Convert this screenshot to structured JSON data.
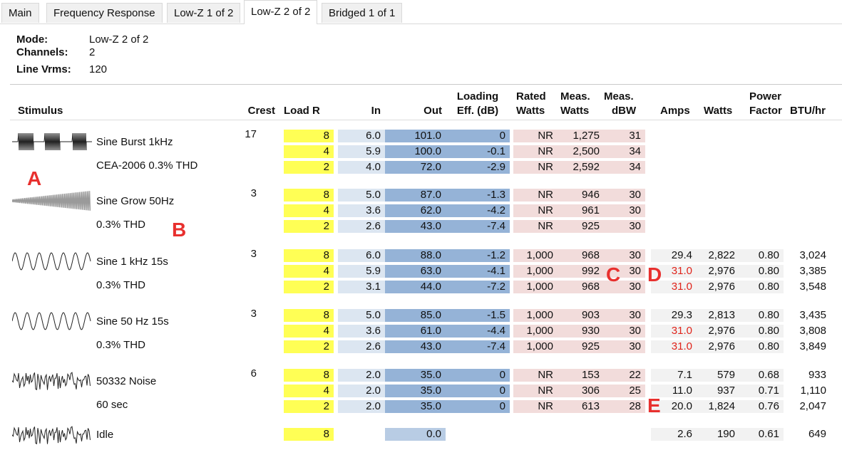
{
  "tabs": [
    {
      "label": "Main",
      "active": false
    },
    {
      "label": "Frequency Response",
      "active": false
    },
    {
      "label": "Low-Z 1 of 2",
      "active": false
    },
    {
      "label": "Low-Z 2 of 2",
      "active": true
    },
    {
      "label": "Bridged 1 of 1",
      "active": false
    }
  ],
  "info": {
    "mode_label": "Mode:",
    "mode_value": "Low-Z 2 of 2",
    "channels_label": "Channels:",
    "channels_value": "2",
    "line_label": "Line Vrms:",
    "line_value": "120"
  },
  "headers": {
    "stimulus": "Stimulus",
    "crest": "Crest",
    "load": "Load R",
    "in": "In",
    "out": "Out",
    "loading1": "Loading",
    "loading2": "Eff. (dB)",
    "rated1": "Rated",
    "rated2": "Watts",
    "meas1": "Meas.",
    "meas2": "Watts",
    "dbw1": "Meas.",
    "dbw2": "dBW",
    "amps": "Amps",
    "watts": "Watts",
    "pf1": "Power",
    "pf2": "Factor",
    "btu": "BTU/hr"
  },
  "stimuli": [
    {
      "name": "Sine Burst 1kHz",
      "sub": "CEA-2006 0.3% THD",
      "crest": "17",
      "wave": "burst-waveform-icon",
      "rows": [
        {
          "load": "8",
          "in": "6.0",
          "out": "101.0",
          "eff": "0",
          "rated": "NR",
          "meas": "1,275",
          "dbw": "31"
        },
        {
          "load": "4",
          "in": "5.9",
          "out": "100.0",
          "eff": "-0.1",
          "rated": "NR",
          "meas": "2,500",
          "dbw": "34"
        },
        {
          "load": "2",
          "in": "4.0",
          "out": "72.0",
          "eff": "-2.9",
          "rated": "NR",
          "meas": "2,592",
          "dbw": "34"
        }
      ]
    },
    {
      "name": "Sine Grow 50Hz",
      "sub": "0.3% THD",
      "crest": "3",
      "wave": "grow-waveform-icon",
      "rows": [
        {
          "load": "8",
          "in": "5.0",
          "out": "87.0",
          "eff": "-1.3",
          "rated": "NR",
          "meas": "946",
          "dbw": "30"
        },
        {
          "load": "4",
          "in": "3.6",
          "out": "62.0",
          "eff": "-4.2",
          "rated": "NR",
          "meas": "961",
          "dbw": "30"
        },
        {
          "load": "2",
          "in": "2.6",
          "out": "43.0",
          "eff": "-7.4",
          "rated": "NR",
          "meas": "925",
          "dbw": "30"
        }
      ]
    },
    {
      "name": "Sine 1 kHz 15s",
      "sub": "0.3% THD",
      "crest": "3",
      "wave": "sine-waveform-icon",
      "rows": [
        {
          "load": "8",
          "in": "6.0",
          "out": "88.0",
          "eff": "-1.2",
          "rated": "1,000",
          "meas": "968",
          "dbw": "30",
          "amps": "29.4",
          "watts": "2,822",
          "pf": "0.80",
          "btu": "3,024",
          "amps_red": false
        },
        {
          "load": "4",
          "in": "5.9",
          "out": "63.0",
          "eff": "-4.1",
          "rated": "1,000",
          "meas": "992",
          "dbw": "30",
          "amps": "31.0",
          "watts": "2,976",
          "pf": "0.80",
          "btu": "3,385",
          "amps_red": true
        },
        {
          "load": "2",
          "in": "3.1",
          "out": "44.0",
          "eff": "-7.2",
          "rated": "1,000",
          "meas": "968",
          "dbw": "30",
          "amps": "31.0",
          "watts": "2,976",
          "pf": "0.80",
          "btu": "3,548",
          "amps_red": true
        }
      ]
    },
    {
      "name": "Sine 50 Hz 15s",
      "sub": "0.3% THD",
      "crest": "3",
      "wave": "sine-waveform-icon",
      "rows": [
        {
          "load": "8",
          "in": "5.0",
          "out": "85.0",
          "eff": "-1.5",
          "rated": "1,000",
          "meas": "903",
          "dbw": "30",
          "amps": "29.3",
          "watts": "2,813",
          "pf": "0.80",
          "btu": "3,435",
          "amps_red": false
        },
        {
          "load": "4",
          "in": "3.6",
          "out": "61.0",
          "eff": "-4.4",
          "rated": "1,000",
          "meas": "930",
          "dbw": "30",
          "amps": "31.0",
          "watts": "2,976",
          "pf": "0.80",
          "btu": "3,808",
          "amps_red": true
        },
        {
          "load": "2",
          "in": "2.6",
          "out": "43.0",
          "eff": "-7.4",
          "rated": "1,000",
          "meas": "925",
          "dbw": "30",
          "amps": "31.0",
          "watts": "2,976",
          "pf": "0.80",
          "btu": "3,849",
          "amps_red": true
        }
      ]
    },
    {
      "name": "50332 Noise",
      "sub": "60 sec",
      "crest": "6",
      "wave": "noise-waveform-icon",
      "rows": [
        {
          "load": "8",
          "in": "2.0",
          "out": "35.0",
          "eff": "0",
          "rated": "NR",
          "meas": "153",
          "dbw": "22",
          "amps": "7.1",
          "watts": "579",
          "pf": "0.68",
          "btu": "933",
          "amps_red": false
        },
        {
          "load": "4",
          "in": "2.0",
          "out": "35.0",
          "eff": "0",
          "rated": "NR",
          "meas": "306",
          "dbw": "25",
          "amps": "11.0",
          "watts": "937",
          "pf": "0.71",
          "btu": "1,110",
          "amps_red": false
        },
        {
          "load": "2",
          "in": "2.0",
          "out": "35.0",
          "eff": "0",
          "rated": "NR",
          "meas": "613",
          "dbw": "28",
          "amps": "20.0",
          "watts": "1,824",
          "pf": "0.76",
          "btu": "2,047",
          "amps_red": false
        }
      ]
    }
  ],
  "idle": {
    "name": "Idle",
    "load": "8",
    "out": "0.0",
    "amps": "2.6",
    "watts": "190",
    "pf": "0.61",
    "btu": "649",
    "wave": "noise-waveform-icon"
  },
  "annotations": [
    "A",
    "B",
    "C",
    "D",
    "E"
  ],
  "colors": {
    "load": "#ffff55",
    "in": "#dce6f1",
    "out": "#95b3d7",
    "rated": "#f2dcdb",
    "power": "#f2f2f2",
    "annotation": "#e8302e",
    "warning": "#e0241b"
  }
}
